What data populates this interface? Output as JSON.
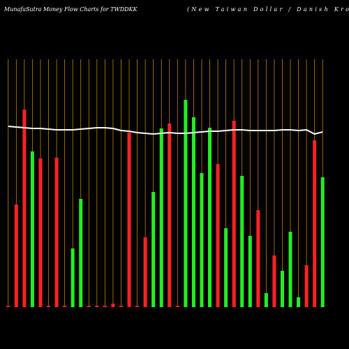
{
  "chart_data": {
    "type": "bar",
    "title": "MunafaSutra  Money Flow  Charts for TWDDKK",
    "subtitle": "(New  Taiwan  Dollar / Danish Kro",
    "categories": [
      null,
      null,
      null,
      null,
      null,
      null,
      null,
      null,
      null,
      null,
      null,
      null,
      null,
      null,
      null,
      null,
      null,
      null,
      null,
      null,
      null,
      null,
      null,
      null,
      null,
      null,
      null,
      null,
      null,
      null,
      null,
      null,
      null,
      null,
      null,
      null,
      null,
      null,
      null,
      null
    ],
    "values": [
      2,
      147,
      283,
      223,
      213,
      2,
      214,
      2,
      84,
      155,
      2,
      2,
      2,
      5,
      2,
      250,
      2,
      100,
      165,
      256,
      263,
      2,
      297,
      272,
      192,
      257,
      205,
      113,
      267,
      188,
      102,
      139,
      20,
      74,
      52,
      108,
      14,
      60,
      239,
      186
    ],
    "colors": [
      "#ff2222",
      "#ff2222",
      "#ff2222",
      "#22ee22",
      "#ff2222",
      "#ff2222",
      "#ff2222",
      "#ff2222",
      "#22ee22",
      "#22ee22",
      "#ff2222",
      "#ff2222",
      "#ff2222",
      "#ff2222",
      "#ff2222",
      "#ff2222",
      "#ff2222",
      "#ff2222",
      "#22ee22",
      "#22ee22",
      "#ff2222",
      "#ff2222",
      "#22ee22",
      "#22ee22",
      "#22ee22",
      "#22ee22",
      "#ff2222",
      "#22ee22",
      "#ff2222",
      "#22ee22",
      "#22ee22",
      "#ff2222",
      "#22ee22",
      "#ff2222",
      "#22ee22",
      "#22ee22",
      "#22ee22",
      "#ff2222",
      "#ff2222",
      "#22ee22"
    ],
    "line": {
      "color": "#ffffff",
      "values": [
        259,
        258,
        257,
        256,
        256,
        255,
        254,
        254,
        254,
        255,
        256,
        257,
        257,
        256,
        253,
        252,
        250,
        249,
        248,
        249,
        250,
        249,
        249,
        250,
        251,
        252,
        252,
        253,
        254,
        254,
        253,
        253,
        253,
        253,
        254,
        254,
        253,
        254,
        248,
        251
      ]
    },
    "ylim": [
      0,
      360
    ],
    "grid_color": "#b8860b"
  }
}
